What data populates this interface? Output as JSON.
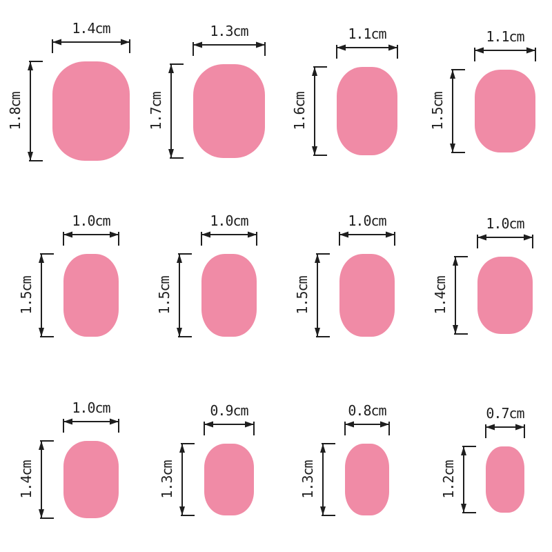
{
  "style": {
    "nail_color": "#f08ba6",
    "line_color": "#1e1e1e",
    "background": "#ffffff"
  },
  "unit": "cm",
  "grid": {
    "rows": 3,
    "columns": 4
  },
  "sizes": [
    {
      "width_label": "1.4cm",
      "height_label": "1.8cm",
      "width_cm": 1.4,
      "height_cm": 1.8
    },
    {
      "width_label": "1.3cm",
      "height_label": "1.7cm",
      "width_cm": 1.3,
      "height_cm": 1.7
    },
    {
      "width_label": "1.1cm",
      "height_label": "1.6cm",
      "width_cm": 1.1,
      "height_cm": 1.6
    },
    {
      "width_label": "1.1cm",
      "height_label": "1.5cm",
      "width_cm": 1.1,
      "height_cm": 1.5
    },
    {
      "width_label": "1.0cm",
      "height_label": "1.5cm",
      "width_cm": 1.0,
      "height_cm": 1.5
    },
    {
      "width_label": "1.0cm",
      "height_label": "1.5cm",
      "width_cm": 1.0,
      "height_cm": 1.5
    },
    {
      "width_label": "1.0cm",
      "height_label": "1.5cm",
      "width_cm": 1.0,
      "height_cm": 1.5
    },
    {
      "width_label": "1.0cm",
      "height_label": "1.4cm",
      "width_cm": 1.0,
      "height_cm": 1.4
    },
    {
      "width_label": "1.0cm",
      "height_label": "1.4cm",
      "width_cm": 1.0,
      "height_cm": 1.4
    },
    {
      "width_label": "0.9cm",
      "height_label": "1.3cm",
      "width_cm": 0.9,
      "height_cm": 1.3
    },
    {
      "width_label": "0.8cm",
      "height_label": "1.3cm",
      "width_cm": 0.8,
      "height_cm": 1.3
    },
    {
      "width_label": "0.7cm",
      "height_label": "1.2cm",
      "width_cm": 0.7,
      "height_cm": 1.2
    }
  ]
}
